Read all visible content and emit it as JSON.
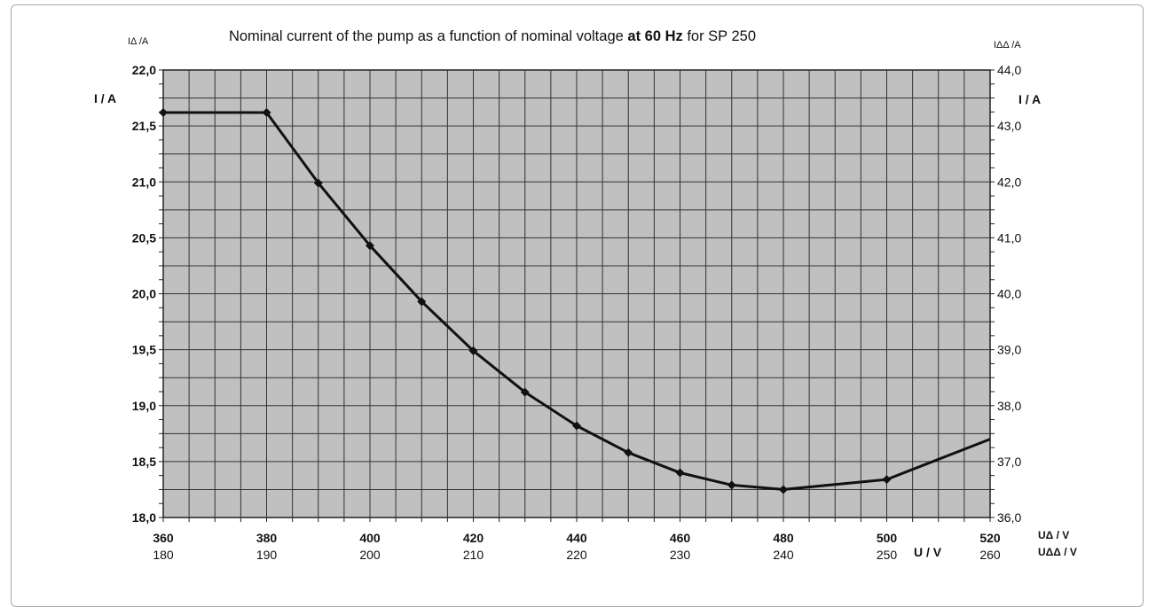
{
  "chart_data": {
    "type": "line",
    "title_parts": [
      {
        "text": "Nominal current of the pump as a function of nominal voltage ",
        "bold": false
      },
      {
        "text": "at 60 Hz",
        "bold": true
      },
      {
        "text": " for SP 250",
        "bold": false
      }
    ],
    "ylabel_left_unit": "IΔ /A",
    "ylabel_left_name": "I / A",
    "ylabel_right_unit": "IΔΔ /A",
    "ylabel_right_name": "I / A",
    "xlabel_name": "U / V",
    "xlabel_unit_primary": "UΔ / V",
    "xlabel_unit_secondary": "UΔΔ / V",
    "xlim": [
      360,
      520
    ],
    "ylim": [
      18.0,
      22.0
    ],
    "y2lim": [
      36.0,
      44.0
    ],
    "x_ticks_primary": [
      "360",
      "380",
      "400",
      "420",
      "440",
      "460",
      "480",
      "500",
      "520"
    ],
    "x_ticks_secondary": [
      "180",
      "190",
      "200",
      "210",
      "220",
      "230",
      "240",
      "250",
      "260"
    ],
    "y_ticks_left": [
      "18,0",
      "18,5",
      "19,0",
      "19,5",
      "20,0",
      "20,5",
      "21,0",
      "21,5",
      "22,0"
    ],
    "y_ticks_right": [
      "36,0",
      "37,0",
      "38,0",
      "39,0",
      "40,0",
      "41,0",
      "42,0",
      "43,0",
      "44,0"
    ],
    "grid": true,
    "plot_background": "#c0c0c0",
    "line_color": "#111111",
    "series": [
      {
        "x": [
          360,
          380,
          390,
          400,
          410,
          420,
          430,
          440,
          450,
          460,
          470,
          480,
          500,
          520
        ],
        "y": [
          21.62,
          21.62,
          20.99,
          20.43,
          19.93,
          19.49,
          19.12,
          18.82,
          18.58,
          18.4,
          18.29,
          18.25,
          18.34,
          18.7
        ],
        "markers": [
          true,
          true,
          true,
          true,
          true,
          true,
          true,
          true,
          true,
          true,
          true,
          true,
          true,
          false
        ]
      }
    ]
  }
}
